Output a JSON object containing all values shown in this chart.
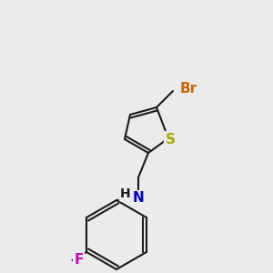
{
  "bg_color": "#ebebeb",
  "bond_color": "#1a1a1a",
  "bond_width": 1.5,
  "atom_colors": {
    "Br": "#cc6600",
    "S": "#aaaa00",
    "N": "#0000cc",
    "F": "#cc00cc",
    "H": "#1a1a1a"
  },
  "font_size": 11,
  "font_size_H": 10
}
